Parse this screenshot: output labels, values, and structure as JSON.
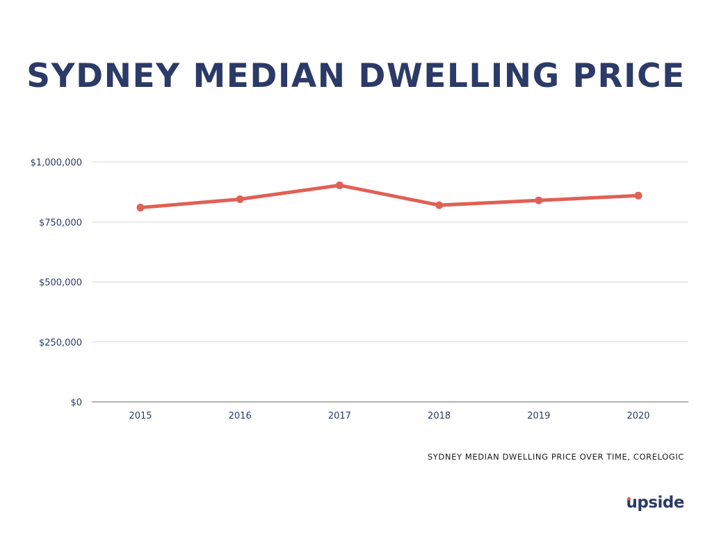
{
  "title": "SYDNEY MEDIAN DWELLING PRICE",
  "caption": "SYDNEY MEDIAN DWELLING PRICE OVER TIME, CORELOGIC",
  "logo": {
    "text": "upside",
    "accent": "#e8554e"
  },
  "colors": {
    "title": "#2b3a67",
    "line": "#e06055",
    "grid": "#d8d8d8",
    "axis": "#9a9a9a",
    "tick_text": "#2b3a67"
  },
  "chart_data": {
    "type": "line",
    "categories": [
      "2015",
      "2016",
      "2017",
      "2018",
      "2019",
      "2020"
    ],
    "series": [
      {
        "values": [
          810000,
          845000,
          903000,
          820000,
          840000,
          860000
        ]
      }
    ],
    "ylim": [
      0,
      1000000
    ],
    "yticks": [
      0,
      250000,
      500000,
      750000,
      1000000
    ],
    "ytick_labels": [
      "$0",
      "$250,000",
      "$500,000",
      "$750,000",
      "$1,000,000"
    ],
    "xlabel": "",
    "ylabel": "",
    "grid": true,
    "legend": "none"
  }
}
